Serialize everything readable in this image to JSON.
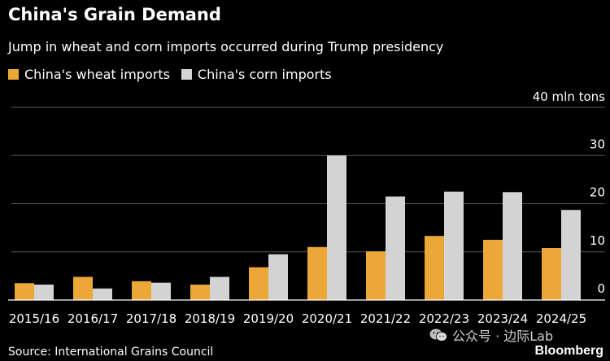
{
  "title": "China's Grain Demand",
  "subtitle": "Jump in wheat and corn imports occurred during Trump presidency",
  "source": "Source: International Grains Council",
  "watermark": "公众号 · 边际Lab",
  "brand": "Bloomberg",
  "icons": {
    "watermark": "wechat-icon"
  },
  "colors": {
    "background": "#000000",
    "wheat": "#EBA737",
    "corn": "#D3D3D3",
    "grid": "#555555",
    "text": "#FFFFFF"
  },
  "chart_data": {
    "type": "bar",
    "title": "China's Grain Demand",
    "subtitle": "Jump in wheat and corn imports occurred during Trump presidency",
    "unit_label": "40 mln tons",
    "categories": [
      "2015/16",
      "2016/17",
      "2017/18",
      "2018/19",
      "2019/20",
      "2020/21",
      "2021/22",
      "2022/23",
      "2023/24",
      "2024/25"
    ],
    "series": [
      {
        "name": "China's wheat imports",
        "color": "#EBA737",
        "values": [
          3.5,
          4.8,
          3.9,
          3.2,
          6.8,
          11.0,
          10.1,
          13.3,
          12.5,
          10.8
        ]
      },
      {
        "name": "China's corn imports",
        "color": "#D3D3D3",
        "values": [
          3.2,
          2.4,
          3.6,
          4.8,
          9.5,
          30.0,
          21.5,
          22.5,
          22.4,
          18.7
        ]
      }
    ],
    "yticks": [
      0,
      10,
      20,
      30
    ],
    "ylim": [
      0,
      40
    ],
    "xlabel": "",
    "ylabel": "",
    "grid": true,
    "legend": "top-left"
  }
}
